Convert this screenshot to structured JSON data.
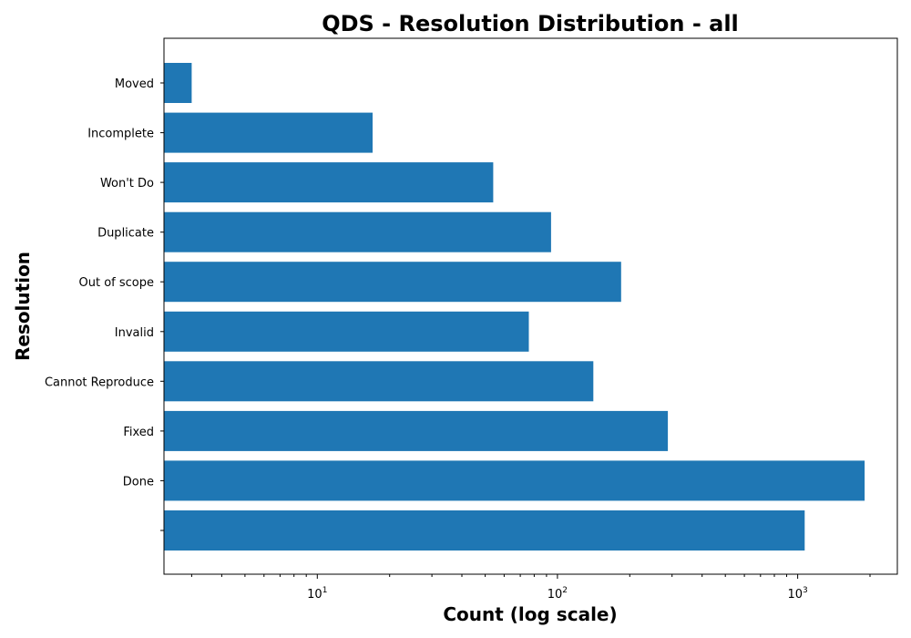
{
  "chart_data": {
    "type": "bar",
    "orientation": "horizontal",
    "title": "QDS - Resolution Distribution - all",
    "xlabel": "Count (log scale)",
    "ylabel": "Resolution",
    "x_scale": "log",
    "xlim": [
      2.3,
      2600
    ],
    "x_major_ticks": [
      {
        "value": 10,
        "base": "10",
        "exp": "1"
      },
      {
        "value": 100,
        "base": "10",
        "exp": "2"
      },
      {
        "value": 1000,
        "base": "10",
        "exp": "3"
      }
    ],
    "categories": [
      "Moved",
      "Incomplete",
      "Won't Do",
      "Duplicate",
      "Out of scope",
      "Invalid",
      "Cannot Reproduce",
      "Fixed",
      "Done",
      ""
    ],
    "values": [
      3,
      17,
      54,
      94,
      184,
      76,
      141,
      288,
      1900,
      1070
    ],
    "bar_color": "#1f77b4",
    "grid": false,
    "legend": "none"
  }
}
